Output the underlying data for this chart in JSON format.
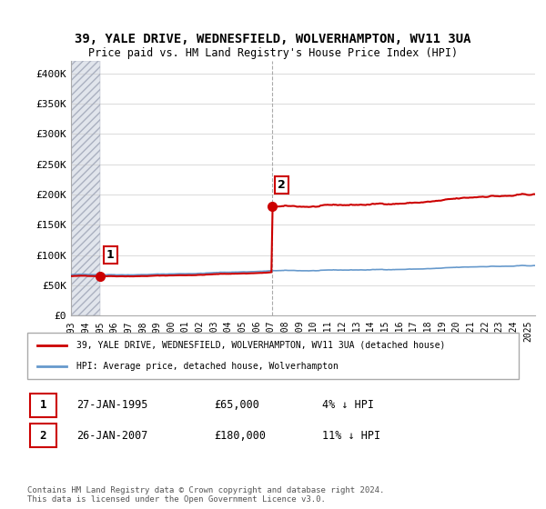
{
  "title_line1": "39, YALE DRIVE, WEDNESFIELD, WOLVERHAMPTON, WV11 3UA",
  "title_line2": "Price paid vs. HM Land Registry's House Price Index (HPI)",
  "ylim": [
    0,
    420000
  ],
  "yticks": [
    0,
    50000,
    100000,
    150000,
    200000,
    250000,
    300000,
    350000,
    400000
  ],
  "ytick_labels": [
    "£0",
    "£50K",
    "£100K",
    "£150K",
    "£200K",
    "£250K",
    "£300K",
    "£350K",
    "£400K"
  ],
  "sale1_date_num": 1995.07,
  "sale1_price": 65000,
  "sale2_date_num": 2007.07,
  "sale2_price": 180000,
  "hpi_color": "#6699cc",
  "sale_color": "#cc0000",
  "legend_label_sale": "39, YALE DRIVE, WEDNESFIELD, WOLVERHAMPTON, WV11 3UA (detached house)",
  "legend_label_hpi": "HPI: Average price, detached house, Wolverhampton",
  "table_rows": [
    {
      "num": "1",
      "date": "27-JAN-1995",
      "price": "£65,000",
      "hpi": "4% ↓ HPI"
    },
    {
      "num": "2",
      "date": "26-JAN-2007",
      "price": "£180,000",
      "hpi": "11% ↓ HPI"
    }
  ],
  "footnote": "Contains HM Land Registry data © Crown copyright and database right 2024.\nThis data is licensed under the Open Government Licence v3.0.",
  "xlim_start": 1993.0,
  "xlim_end": 2025.5,
  "xticks": [
    1993,
    1994,
    1995,
    1996,
    1997,
    1998,
    1999,
    2000,
    2001,
    2002,
    2003,
    2004,
    2005,
    2006,
    2007,
    2008,
    2009,
    2010,
    2011,
    2012,
    2013,
    2014,
    2015,
    2016,
    2017,
    2018,
    2019,
    2020,
    2021,
    2022,
    2023,
    2024,
    2025
  ]
}
